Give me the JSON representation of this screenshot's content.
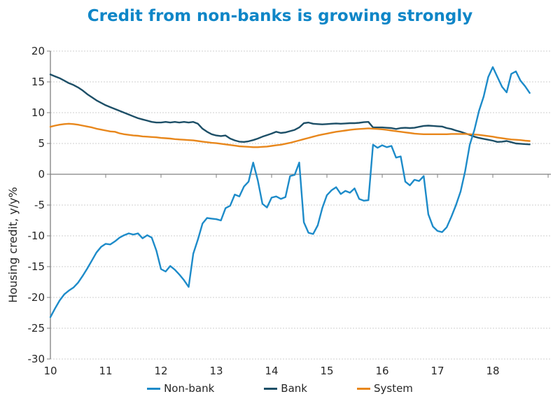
{
  "chart_data": {
    "type": "line",
    "title": "Credit from non-banks is growing strongly",
    "title_color": "#0f86c7",
    "ylabel": "Housing credit, y/y%",
    "xlim": [
      10,
      19.05
    ],
    "ylim": [
      -30,
      20
    ],
    "y_ticks": [
      20,
      15,
      10,
      5,
      0,
      -5,
      -10,
      -15,
      -20,
      -25,
      -30
    ],
    "x_ticks": [
      10,
      11,
      12,
      13,
      14,
      15,
      16,
      17,
      18,
      19
    ],
    "x_tick_labels": [
      "10",
      "11",
      "12",
      "13",
      "14",
      "15",
      "16",
      "17",
      "18"
    ],
    "grid": "horizontal-only",
    "legend_position": "bottom-center",
    "axis_color": "#808080",
    "grid_color": "#cfcfcf",
    "tick_label_color": "#262626",
    "x_start": 10.0,
    "x_step": 0.0833333,
    "x_unit": "year (20XX), monthly data",
    "series": [
      {
        "name": "Non-bank",
        "color": "#1d8bc9",
        "values": [
          -23.2,
          -21.8,
          -20.5,
          -19.5,
          -18.9,
          -18.4,
          -17.6,
          -16.5,
          -15.3,
          -14.0,
          -12.7,
          -11.8,
          -11.3,
          -11.4,
          -10.9,
          -10.3,
          -9.9,
          -9.6,
          -9.8,
          -9.6,
          -10.4,
          -9.9,
          -10.3,
          -12.4,
          -15.4,
          -15.8,
          -14.9,
          -15.5,
          -16.3,
          -17.2,
          -18.3,
          -12.9,
          -10.6,
          -8.0,
          -7.1,
          -7.2,
          -7.3,
          -7.5,
          -5.5,
          -5.1,
          -3.3,
          -3.6,
          -2.0,
          -1.2,
          1.9,
          -1.0,
          -4.8,
          -5.4,
          -3.8,
          -3.6,
          -4.0,
          -3.7,
          -0.3,
          -0.1,
          1.9,
          -7.8,
          -9.5,
          -9.7,
          -8.3,
          -5.5,
          -3.4,
          -2.6,
          -2.1,
          -3.2,
          -2.7,
          -3.0,
          -2.3,
          -4.0,
          -4.3,
          -4.2,
          4.8,
          4.3,
          4.7,
          4.4,
          4.6,
          2.7,
          2.9,
          -1.2,
          -1.8,
          -0.9,
          -1.1,
          -0.3,
          -6.5,
          -8.5,
          -9.2,
          -9.4,
          -8.6,
          -6.9,
          -5.0,
          -2.8,
          0.5,
          4.8,
          7.2,
          10.3,
          12.6,
          15.8,
          17.4,
          15.8,
          14.2,
          13.3,
          16.3,
          16.7,
          15.2,
          14.3,
          13.2
        ]
      },
      {
        "name": "Bank",
        "color": "#1d4f67",
        "values": [
          16.2,
          15.9,
          15.6,
          15.2,
          14.8,
          14.5,
          14.1,
          13.6,
          13.0,
          12.5,
          12.0,
          11.6,
          11.2,
          10.9,
          10.6,
          10.3,
          10.0,
          9.7,
          9.4,
          9.1,
          8.9,
          8.7,
          8.5,
          8.4,
          8.4,
          8.5,
          8.4,
          8.5,
          8.4,
          8.5,
          8.4,
          8.5,
          8.2,
          7.4,
          6.9,
          6.5,
          6.3,
          6.2,
          6.3,
          5.8,
          5.5,
          5.3,
          5.25,
          5.35,
          5.55,
          5.8,
          6.1,
          6.35,
          6.6,
          6.9,
          6.7,
          6.8,
          7.0,
          7.2,
          7.6,
          8.3,
          8.4,
          8.2,
          8.15,
          8.1,
          8.15,
          8.2,
          8.25,
          8.2,
          8.25,
          8.3,
          8.3,
          8.35,
          8.45,
          8.5,
          7.6,
          7.6,
          7.6,
          7.55,
          7.5,
          7.35,
          7.5,
          7.55,
          7.5,
          7.55,
          7.7,
          7.85,
          7.9,
          7.85,
          7.8,
          7.75,
          7.5,
          7.35,
          7.1,
          6.9,
          6.65,
          6.4,
          6.1,
          5.9,
          5.75,
          5.6,
          5.45,
          5.25,
          5.3,
          5.4,
          5.2,
          5.0,
          4.95,
          4.9,
          4.85
        ]
      },
      {
        "name": "System",
        "color": "#e8871c",
        "values": [
          7.7,
          7.9,
          8.05,
          8.15,
          8.2,
          8.15,
          8.05,
          7.9,
          7.75,
          7.6,
          7.4,
          7.25,
          7.1,
          6.95,
          6.9,
          6.65,
          6.5,
          6.4,
          6.3,
          6.25,
          6.15,
          6.1,
          6.05,
          6.0,
          5.9,
          5.85,
          5.8,
          5.7,
          5.65,
          5.6,
          5.55,
          5.5,
          5.4,
          5.3,
          5.2,
          5.1,
          5.05,
          4.95,
          4.85,
          4.75,
          4.65,
          4.55,
          4.5,
          4.45,
          4.4,
          4.4,
          4.45,
          4.5,
          4.6,
          4.7,
          4.8,
          4.95,
          5.1,
          5.3,
          5.5,
          5.7,
          5.9,
          6.1,
          6.3,
          6.45,
          6.6,
          6.75,
          6.9,
          7.0,
          7.1,
          7.2,
          7.3,
          7.35,
          7.4,
          7.45,
          7.4,
          7.35,
          7.3,
          7.2,
          7.1,
          7.0,
          6.9,
          6.8,
          6.7,
          6.6,
          6.55,
          6.5,
          6.5,
          6.5,
          6.5,
          6.5,
          6.5,
          6.55,
          6.55,
          6.55,
          6.55,
          6.5,
          6.45,
          6.4,
          6.3,
          6.2,
          6.1,
          5.95,
          5.85,
          5.75,
          5.65,
          5.6,
          5.55,
          5.45,
          5.4
        ]
      }
    ]
  }
}
